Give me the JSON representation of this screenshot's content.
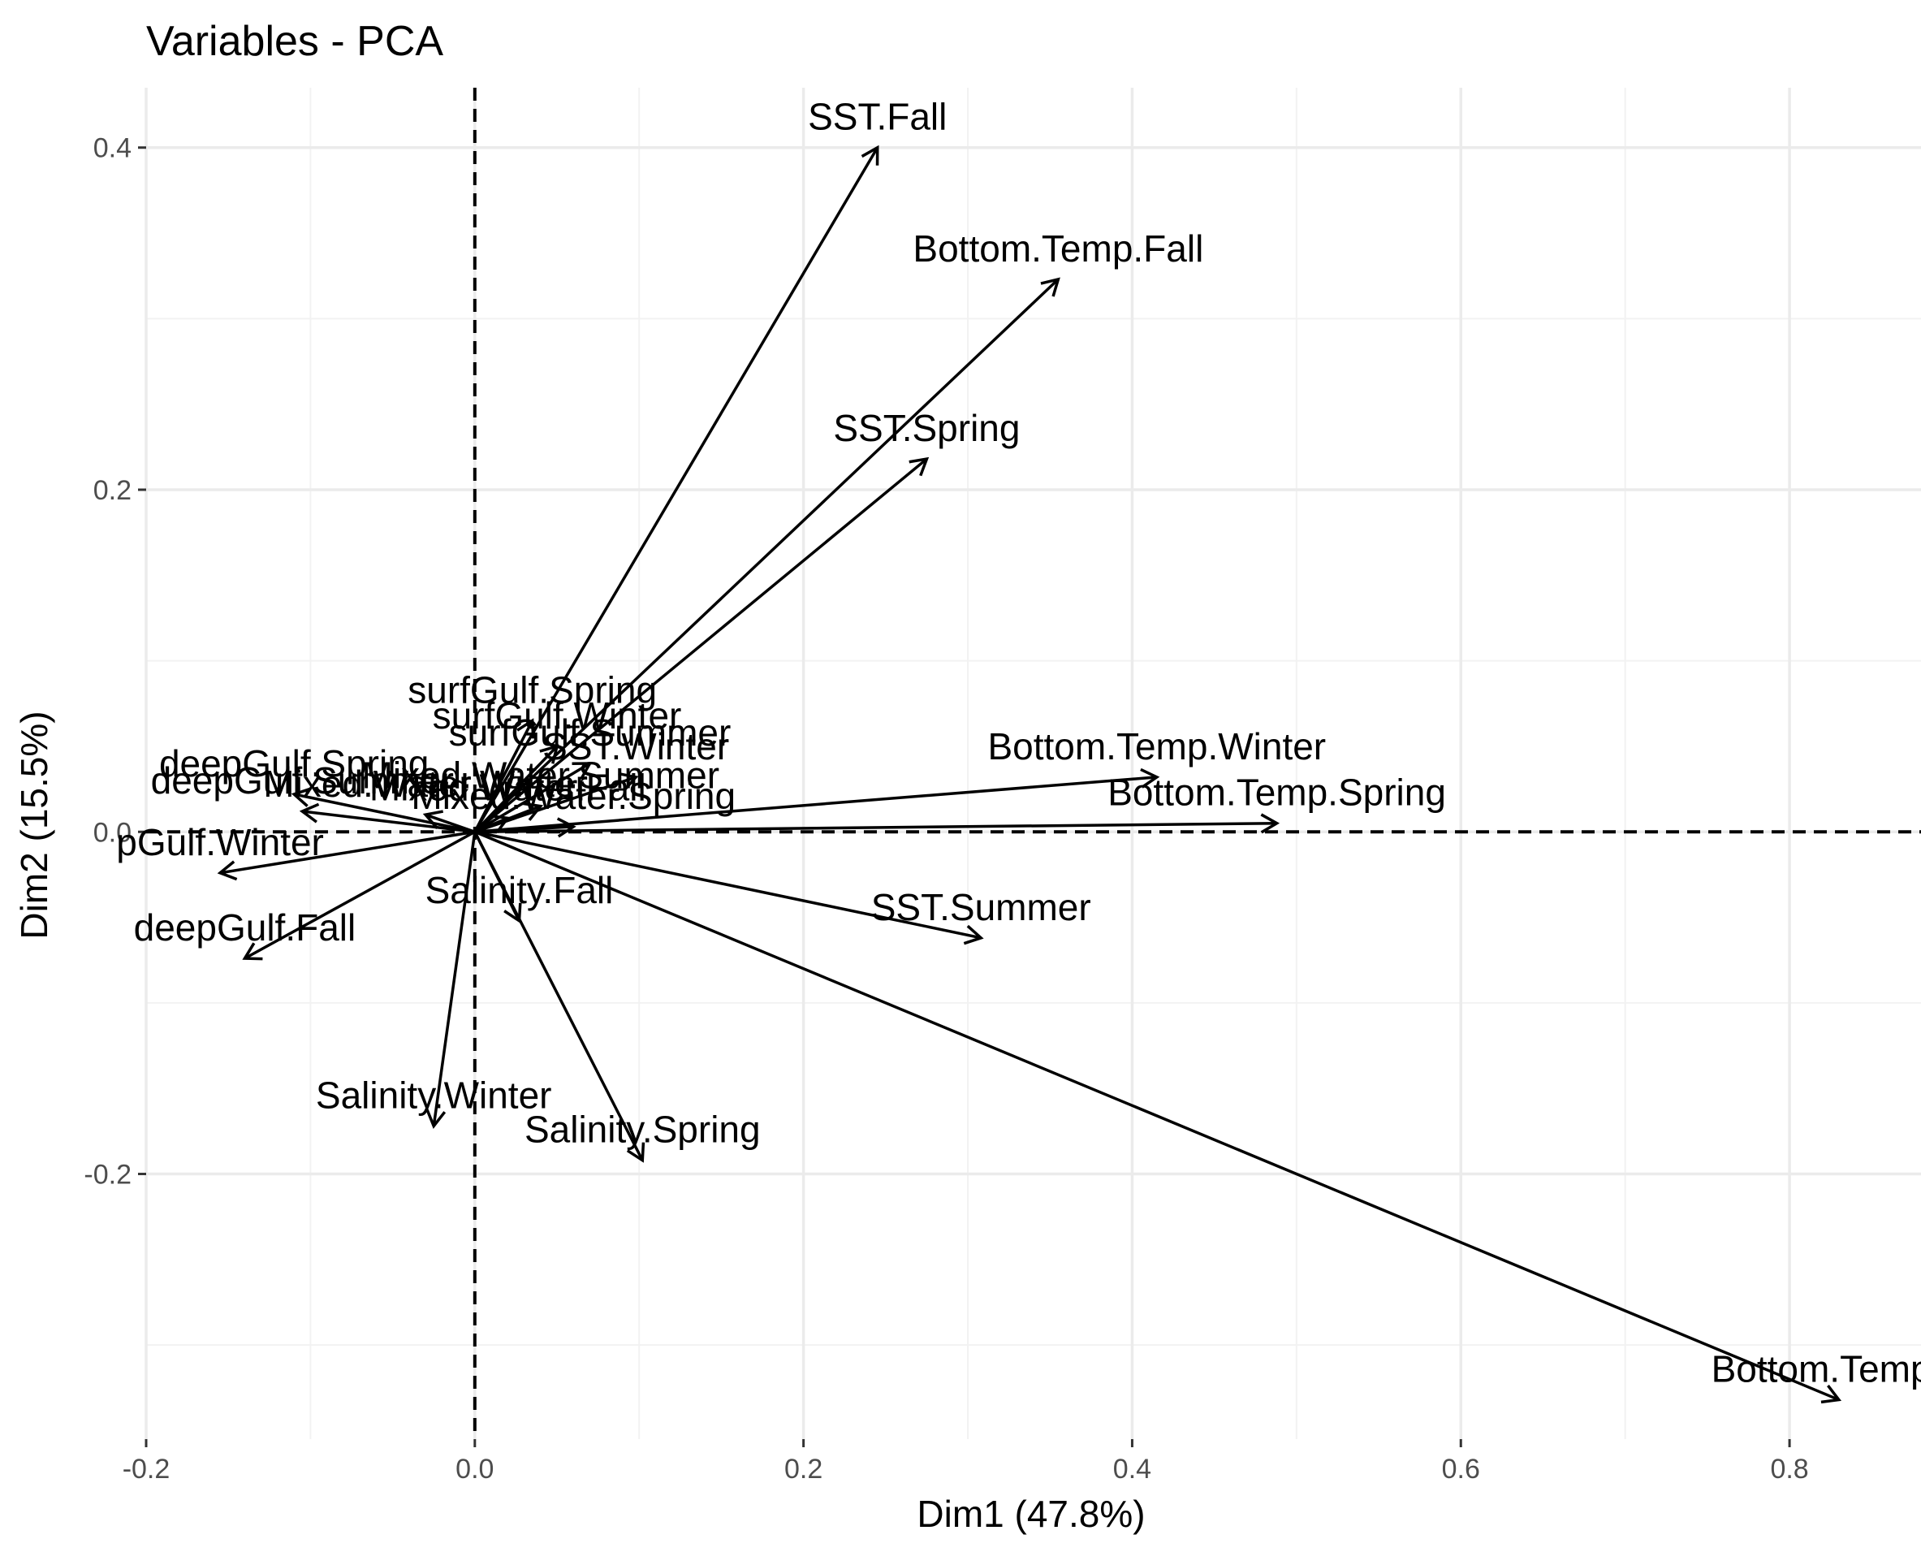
{
  "chart_data": {
    "type": "scatter",
    "subtype": "pca-variable-arrows",
    "title": "Variables - PCA",
    "xlabel": "Dim1 (47.8%)",
    "ylabel": "Dim2 (15.5%)",
    "xlim": [
      -0.2,
      0.88
    ],
    "ylim": [
      -0.355,
      0.435
    ],
    "x_ticks": [
      -0.2,
      0.0,
      0.2,
      0.4,
      0.6,
      0.8
    ],
    "x_tick_labels": [
      "-0.2",
      "0.0",
      "0.2",
      "0.4",
      "0.6",
      "0.8"
    ],
    "y_ticks": [
      -0.2,
      0.0,
      0.2,
      0.4
    ],
    "y_tick_labels": [
      "-0.2",
      "0.0",
      "0.2",
      "0.4"
    ],
    "grid": true,
    "reference_lines": {
      "x": 0,
      "y": 0,
      "style": "dashed"
    },
    "variables": [
      {
        "name": "SST.Fall",
        "x": 0.245,
        "y": 0.4
      },
      {
        "name": "Bottom.Temp.Fall",
        "x": 0.355,
        "y": 0.323
      },
      {
        "name": "SST.Spring",
        "x": 0.275,
        "y": 0.218
      },
      {
        "name": "Bottom.Temp.Winter",
        "x": 0.415,
        "y": 0.032
      },
      {
        "name": "Bottom.Temp.Spring",
        "x": 0.488,
        "y": 0.005
      },
      {
        "name": "SST.Summer",
        "x": 0.308,
        "y": -0.062
      },
      {
        "name": "Bottom.Temp.S",
        "x": 0.83,
        "y": -0.332
      },
      {
        "name": "Salinity.Fall",
        "x": 0.027,
        "y": -0.052
      },
      {
        "name": "Salinity.Winter",
        "x": -0.025,
        "y": -0.172
      },
      {
        "name": "Salinity.Spring",
        "x": 0.102,
        "y": -0.192
      },
      {
        "name": "deepGulf.Fall",
        "x": -0.14,
        "y": -0.074
      },
      {
        "name": "pGulf.Winter",
        "x": -0.155,
        "y": -0.024
      },
      {
        "name": "deepGulf.Spring",
        "x": -0.11,
        "y": 0.022
      },
      {
        "name": "deepGulf.Summer",
        "x": -0.105,
        "y": 0.012
      },
      {
        "name": "surfGulf.Spring",
        "x": 0.035,
        "y": 0.065
      },
      {
        "name": "surfGulf.Winter",
        "x": 0.05,
        "y": 0.05
      },
      {
        "name": "surfGulf.Summer",
        "x": 0.07,
        "y": 0.04
      },
      {
        "name": "SST.Winter",
        "x": 0.098,
        "y": 0.032
      },
      {
        "name": "Mixed.Water.Spring",
        "x": 0.06,
        "y": 0.003
      },
      {
        "name": "Mixed.Water.Summer",
        "x": 0.04,
        "y": 0.015
      },
      {
        "name": "Mixed.Water.Fall",
        "x": 0.02,
        "y": 0.008
      },
      {
        "name": "Mixed.Water.Winter",
        "x": -0.03,
        "y": 0.01
      }
    ]
  }
}
